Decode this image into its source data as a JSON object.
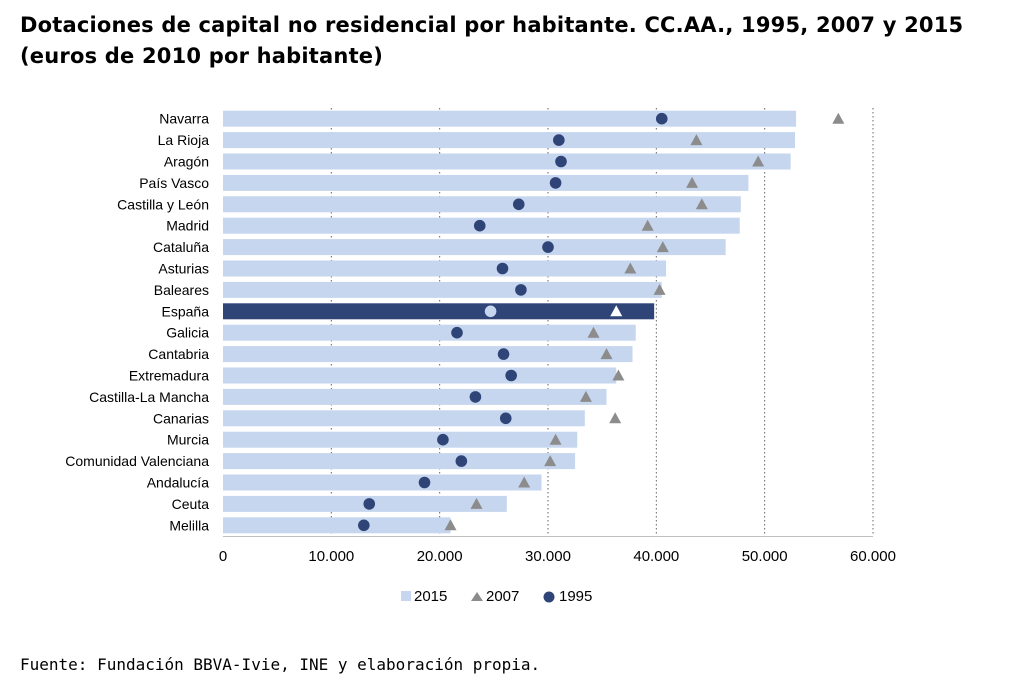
{
  "title": "Dotaciones de capital no residencial por habitante. CC.AA., 1995, 2007 y 2015 (euros de 2010 por habitante)",
  "source": "Fuente: Fundación BBVA-Ivie, INE y elaboración propia.",
  "chart_data": {
    "type": "bar",
    "orientation": "horizontal",
    "xlim": [
      0,
      60000
    ],
    "x_ticks": [
      "0",
      "10.000",
      "20.000",
      "30.000",
      "40.000",
      "50.000",
      "60.000"
    ],
    "gridlines": "dotted vertical at 10.000-unit intervals",
    "legend_position": "bottom",
    "categories": [
      "Navarra",
      "La Rioja",
      "Aragón",
      "País Vasco",
      "Castilla y León",
      "Madrid",
      "Cataluña",
      "Asturias",
      "Baleares",
      "España",
      "Galicia",
      "Cantabria",
      "Extremadura",
      "Castilla-La Mancha",
      "Canarias",
      "Murcia",
      "Comunidad Valenciana",
      "Andalucía",
      "Ceuta",
      "Melilla"
    ],
    "highlight_category": "España",
    "series": [
      {
        "name": "2015",
        "marker": "bar",
        "color": "#c6d6ef",
        "highlight_color": "#2f4577",
        "values": [
          52900,
          52800,
          52400,
          48500,
          47800,
          47700,
          46400,
          40900,
          40500,
          39800,
          38100,
          37800,
          36300,
          35400,
          33400,
          32700,
          32500,
          29400,
          26200,
          21000
        ]
      },
      {
        "name": "2007",
        "marker": "triangle",
        "color": "#8c8c8c",
        "highlight_color": "#ffffff",
        "values": [
          56800,
          43700,
          49400,
          43300,
          44200,
          39200,
          40600,
          37600,
          40300,
          36300,
          34200,
          35400,
          36500,
          33500,
          36200,
          30700,
          30200,
          27800,
          23400,
          21000
        ]
      },
      {
        "name": "1995",
        "marker": "circle",
        "color": "#2f4577",
        "highlight_color": "#c6d6ef",
        "values": [
          40500,
          31000,
          31200,
          30700,
          27300,
          23700,
          30000,
          25800,
          27500,
          24700,
          21600,
          25900,
          26600,
          23300,
          26100,
          20300,
          22000,
          18600,
          13500,
          13000
        ]
      }
    ]
  }
}
